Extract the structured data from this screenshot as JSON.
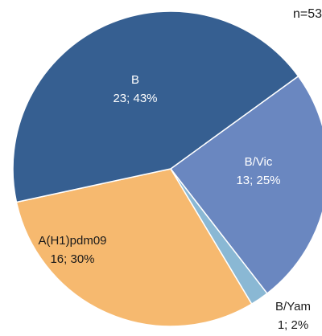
{
  "sample_note": "n=53",
  "chart_data": {
    "type": "pie",
    "title": "",
    "total": 53,
    "slices": [
      {
        "name": "B",
        "count": 23,
        "percent": 43,
        "label": "23; 43%",
        "color": "#365f91"
      },
      {
        "name": "B/Vic",
        "count": 13,
        "percent": 25,
        "label": "13; 25%",
        "color": "#6a87c0"
      },
      {
        "name": "B/Yam",
        "count": 1,
        "percent": 2,
        "label": "1; 2%",
        "color": "#8ab8d4"
      },
      {
        "name": "A(H1)pdm09",
        "count": 16,
        "percent": 30,
        "label": "16; 30%",
        "color": "#f6b96f"
      }
    ],
    "start_angle_deg": 54,
    "direction": "clockwise",
    "legend": "none"
  }
}
